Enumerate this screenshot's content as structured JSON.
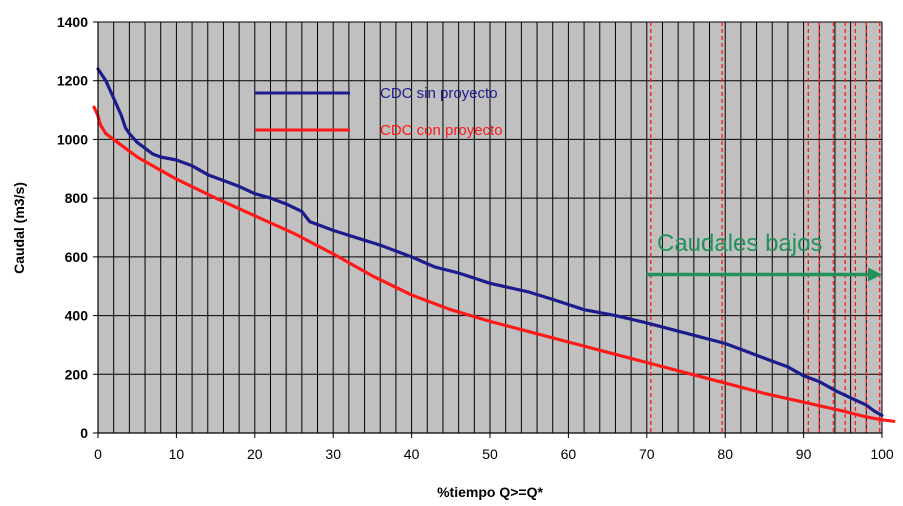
{
  "chart_data": {
    "type": "line",
    "xlabel": "%tiempo Q>=Q*",
    "ylabel": "Caudal (m3/s)",
    "xlim": [
      0,
      100
    ],
    "ylim": [
      0,
      1400
    ],
    "x_ticks": [
      "0",
      "10",
      "20",
      "30",
      "40",
      "50",
      "60",
      "70",
      "80",
      "90",
      "100"
    ],
    "y_ticks": [
      "0",
      "200",
      "400",
      "600",
      "800",
      "1000",
      "1200",
      "1400"
    ],
    "vertical_gridline_step": 2,
    "grid": true,
    "plot_background": "#C0C0C0",
    "legend_position": "upper-center",
    "series": [
      {
        "name": "CDC sin proyecto",
        "color": "#1C1C8C",
        "points": [
          [
            0,
            1240
          ],
          [
            1,
            1200
          ],
          [
            2,
            1140
          ],
          [
            3,
            1080
          ],
          [
            3.5,
            1040
          ],
          [
            4,
            1020
          ],
          [
            5,
            990
          ],
          [
            6,
            970
          ],
          [
            7,
            950
          ],
          [
            8,
            940
          ],
          [
            10,
            930
          ],
          [
            12,
            910
          ],
          [
            14,
            880
          ],
          [
            16,
            860
          ],
          [
            18,
            840
          ],
          [
            20,
            815
          ],
          [
            22,
            800
          ],
          [
            24,
            780
          ],
          [
            26,
            755
          ],
          [
            27,
            720
          ],
          [
            30,
            690
          ],
          [
            33,
            665
          ],
          [
            36,
            640
          ],
          [
            40,
            600
          ],
          [
            43,
            565
          ],
          [
            46,
            545
          ],
          [
            50,
            510
          ],
          [
            55,
            480
          ],
          [
            58,
            455
          ],
          [
            62,
            420
          ],
          [
            66,
            400
          ],
          [
            70,
            375
          ],
          [
            75,
            340
          ],
          [
            80,
            305
          ],
          [
            83,
            275
          ],
          [
            86,
            245
          ],
          [
            88,
            225
          ],
          [
            90,
            195
          ],
          [
            92,
            175
          ],
          [
            94,
            145
          ],
          [
            96,
            120
          ],
          [
            98,
            95
          ],
          [
            99,
            75
          ],
          [
            100,
            60
          ]
        ]
      },
      {
        "name": "CDC con proyecto",
        "color": "#FF1A1A",
        "points": [
          [
            -0.5,
            1110
          ],
          [
            0,
            1080
          ],
          [
            0.3,
            1050
          ],
          [
            1,
            1020
          ],
          [
            3,
            980
          ],
          [
            5,
            940
          ],
          [
            8,
            895
          ],
          [
            10,
            865
          ],
          [
            15,
            800
          ],
          [
            20,
            740
          ],
          [
            25,
            680
          ],
          [
            30,
            610
          ],
          [
            35,
            535
          ],
          [
            40,
            470
          ],
          [
            45,
            420
          ],
          [
            50,
            380
          ],
          [
            55,
            345
          ],
          [
            60,
            310
          ],
          [
            65,
            275
          ],
          [
            70,
            240
          ],
          [
            75,
            205
          ],
          [
            80,
            170
          ],
          [
            85,
            135
          ],
          [
            90,
            105
          ],
          [
            95,
            75
          ],
          [
            98,
            55
          ],
          [
            100,
            45
          ],
          [
            101.5,
            40
          ]
        ]
      }
    ],
    "annotations": {
      "low_flow_label": "Caudales bajos",
      "low_flow_color": "#22915A",
      "arrow_from_x": 70,
      "arrow_to_x": 100,
      "arrow_y": 540,
      "dashed_lines_x": [
        70.5,
        79.6,
        90.6,
        92,
        93.8,
        95.3,
        96.6,
        98,
        99.7
      ],
      "dashed_line_color": "#FF2020"
    }
  }
}
